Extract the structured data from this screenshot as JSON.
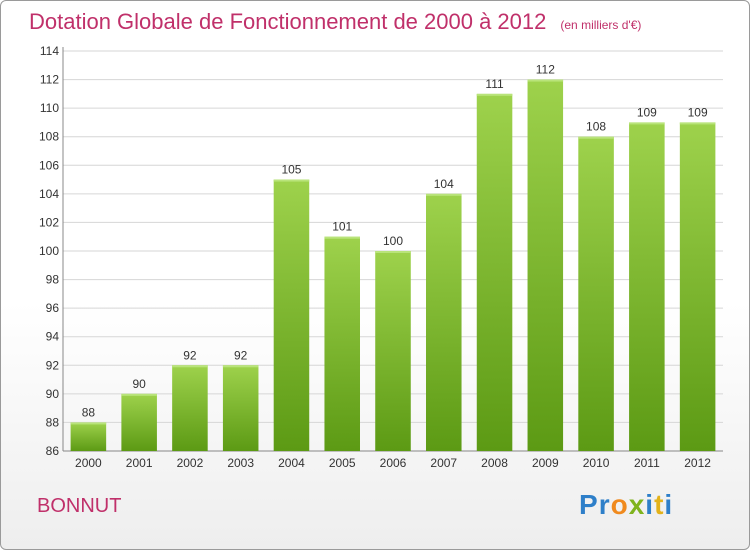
{
  "header": {
    "title": "Dotation Globale de Fonctionnement de 2000 à 2012",
    "subtitle": "(en milliers d'€)"
  },
  "footer": {
    "commune": "BONNUT",
    "logo_text": "Proxiti",
    "logo_letters": [
      {
        "ch": "P",
        "color": "#2e7fc9"
      },
      {
        "ch": "r",
        "color": "#2e7fc9"
      },
      {
        "ch": "o",
        "color": "#f08a1e"
      },
      {
        "ch": "x",
        "color": "#7fb31e"
      },
      {
        "ch": "i",
        "color": "#2e7fc9"
      },
      {
        "ch": "t",
        "color": "#e3b21a"
      },
      {
        "ch": "i",
        "color": "#2e7fc9"
      }
    ]
  },
  "colors": {
    "bar_top": "#9ed24c",
    "bar_bottom": "#5c9a14",
    "title": "#c0306a"
  },
  "chart_data": {
    "type": "bar",
    "categories": [
      "2000",
      "2001",
      "2002",
      "2003",
      "2004",
      "2005",
      "2006",
      "2007",
      "2008",
      "2009",
      "2010",
      "2011",
      "2012"
    ],
    "values": [
      88,
      90,
      92,
      92,
      105,
      101,
      100,
      104,
      111,
      112,
      108,
      109,
      109
    ],
    "data_labels": [
      "88",
      "90",
      "92",
      "92",
      "105",
      "101",
      "100",
      "104",
      "111",
      "112",
      "108",
      "109",
      "109"
    ],
    "ylim": [
      86,
      114
    ],
    "yticks": [
      86,
      88,
      90,
      92,
      94,
      96,
      98,
      100,
      102,
      104,
      106,
      108,
      110,
      112,
      114
    ],
    "grid": true,
    "xlabel": "",
    "ylabel": ""
  }
}
